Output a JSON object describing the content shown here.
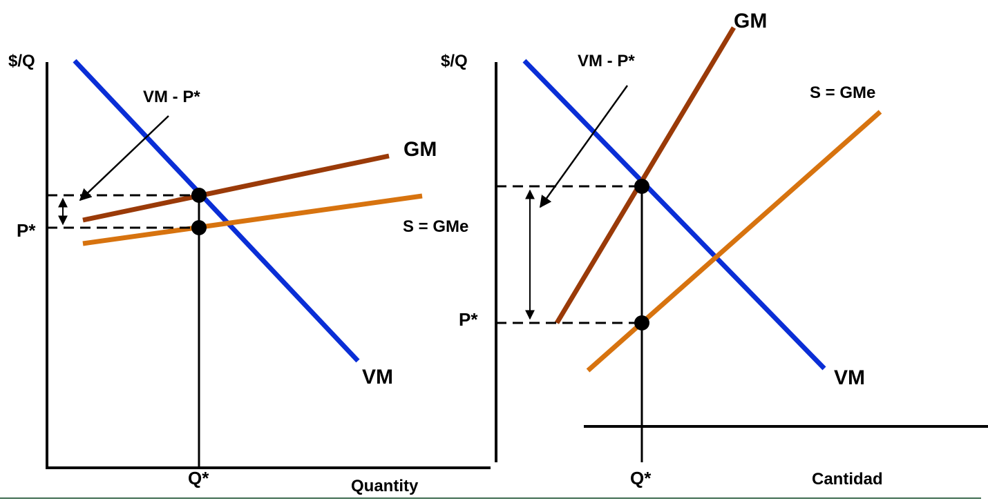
{
  "colors": {
    "vm": "#0a2ed6",
    "gm": "#9a3a08",
    "sgme": "#d7730f",
    "axis": "#000000",
    "bottom_rule": "#3d6b4f"
  },
  "left_panel": {
    "y_axis_label": "$/Q",
    "x_axis_label": "Quantity",
    "p_star_label": "P*",
    "q_star_label": "Q*",
    "vm_label": "VM",
    "gm_label": "GM",
    "s_label": "S = GMe",
    "gap_label": "VM - P*"
  },
  "right_panel": {
    "y_axis_label": "$/Q",
    "x_axis_label": "Cantidad",
    "p_star_label": "P*",
    "q_star_label": "Q*",
    "vm_label": "VM",
    "gm_label": "GM",
    "s_label": "S = GMe",
    "gap_label": "VM - P*"
  }
}
